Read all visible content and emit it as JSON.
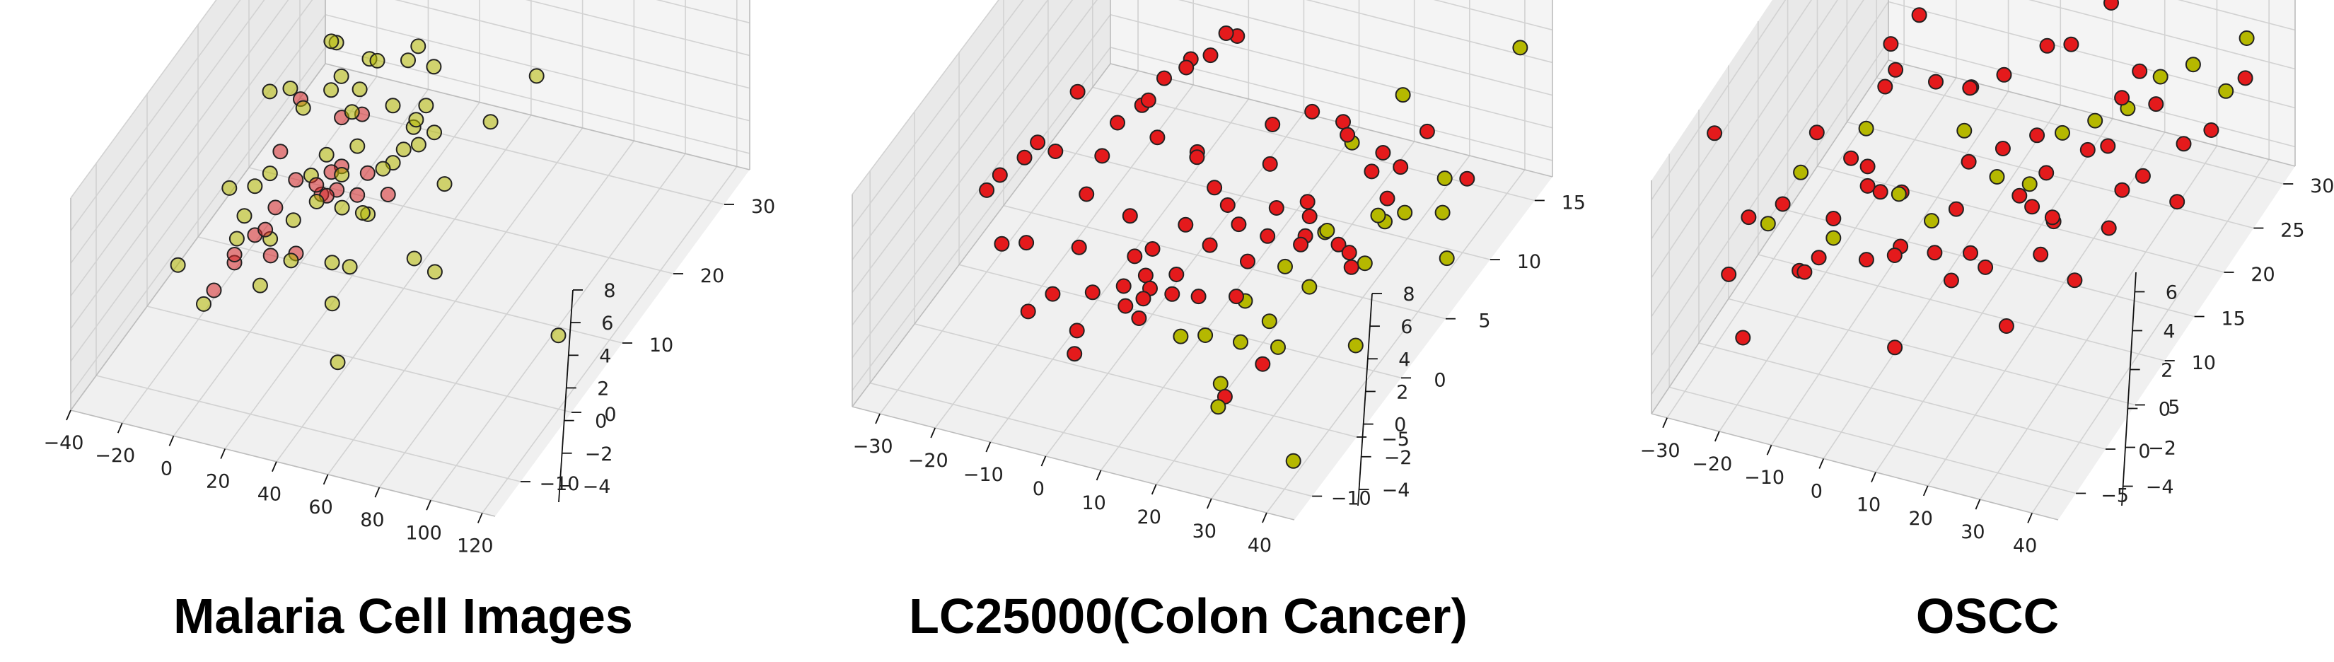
{
  "chart_data": [
    {
      "type": "scatter",
      "projection": "3d",
      "title": "Malaria Cell Images",
      "x_ticks": [
        "−40",
        "−20",
        "0",
        "20",
        "40",
        "60",
        "80",
        "100",
        "120"
      ],
      "y_ticks": [
        "−10",
        "0",
        "10",
        "20",
        "30"
      ],
      "z_ticks": [
        "−4",
        "−2",
        "0",
        "2",
        "4",
        "6",
        "8"
      ],
      "xlim": [
        -40,
        125
      ],
      "ylim": [
        -15,
        35
      ],
      "zlim": [
        -5,
        8
      ],
      "grid": true,
      "legend": "none",
      "series": [
        {
          "color": "#d62728",
          "marker": "circle",
          "x": [
            -14,
            -10,
            -6,
            -2,
            2,
            6,
            10,
            14,
            -12,
            -4,
            4,
            12,
            -8,
            0,
            8,
            16,
            -6,
            6,
            20,
            24,
            2,
            -2
          ],
          "y": [
            0,
            2,
            4,
            6,
            8,
            10,
            12,
            14,
            16,
            18,
            20,
            -2,
            1,
            3,
            5,
            7,
            9,
            11,
            13,
            15,
            17,
            19
          ],
          "z": [
            -3,
            -2,
            -1,
            0,
            1,
            0,
            -1,
            -2,
            2,
            -3,
            0,
            1,
            -1,
            0,
            -2,
            1,
            2,
            -1,
            0,
            -2,
            1,
            -3
          ]
        },
        {
          "color": "#b5b800",
          "marker": "circle",
          "x": [
            -18,
            -15,
            -12,
            -9,
            -6,
            -3,
            0,
            3,
            6,
            9,
            12,
            15,
            18,
            21,
            24,
            27,
            -16,
            -10,
            -4,
            2,
            8,
            14,
            20,
            26,
            30,
            34,
            40,
            48,
            56,
            62,
            -22,
            -28,
            -14,
            -8,
            0,
            6,
            12,
            18,
            22,
            28,
            36,
            44,
            52,
            -20,
            -12,
            -6,
            4,
            10,
            16,
            24,
            32,
            110
          ],
          "y": [
            0,
            5,
            10,
            15,
            20,
            25,
            2,
            7,
            12,
            17,
            22,
            27,
            4,
            9,
            14,
            19,
            24,
            1,
            6,
            11,
            16,
            21,
            26,
            3,
            8,
            13,
            18,
            23,
            28,
            5,
            10,
            0,
            15,
            20,
            25,
            30,
            2,
            12,
            22,
            8,
            18,
            -5,
            6,
            14,
            24,
            4,
            16,
            26,
            10,
            20,
            0,
            5
          ],
          "z": [
            -4,
            -2,
            0,
            2,
            4,
            1,
            -3,
            -1,
            1,
            3,
            0,
            -2,
            2,
            -4,
            0,
            1,
            -1,
            3,
            -2,
            0,
            2,
            -3,
            1,
            -1,
            0,
            2,
            -2,
            0,
            1,
            -1,
            -3,
            -2,
            3,
            4,
            1,
            0,
            -1,
            2,
            -2,
            0,
            1,
            -3,
            -1,
            3,
            0,
            2,
            -2,
            1,
            -1,
            0,
            -2,
            -3
          ]
        }
      ]
    },
    {
      "type": "scatter",
      "projection": "3d",
      "title": "LC25000(Colon Cancer)",
      "x_ticks": [
        "−30",
        "−20",
        "−10",
        "0",
        "10",
        "20",
        "30",
        "40"
      ],
      "y_ticks": [
        "−10",
        "−5",
        "0",
        "5",
        "10",
        "15"
      ],
      "z_ticks": [
        "−4",
        "−2",
        "0",
        "2",
        "4",
        "6",
        "8"
      ],
      "xlim": [
        -35,
        45
      ],
      "ylim": [
        -12,
        17
      ],
      "zlim": [
        -5,
        8
      ],
      "grid": true,
      "legend": "none",
      "series": [
        {
          "color": "#e41a1c",
          "marker": "circle",
          "x": [
            -30,
            -24,
            -20,
            -16,
            -12,
            -8,
            -4,
            0,
            4,
            8,
            12,
            16,
            20,
            24,
            28,
            32,
            36,
            -26,
            -18,
            -10,
            -2,
            6,
            14,
            22,
            30,
            -22,
            -14,
            -6,
            2,
            10,
            18,
            26,
            34,
            -28,
            -20,
            -12,
            -4,
            4,
            12,
            20,
            28,
            -16,
            -8,
            0,
            8,
            16,
            24,
            32,
            -10,
            -2,
            6,
            14,
            22,
            0,
            10,
            20,
            -6,
            4,
            14,
            24,
            -14,
            8,
            18,
            28,
            -24,
            -4,
            16,
            36,
            -18,
            2
          ],
          "y": [
            0,
            2,
            4,
            6,
            8,
            10,
            12,
            -2,
            -4,
            -6,
            1,
            3,
            5,
            7,
            9,
            11,
            13,
            -1,
            -3,
            -5,
            -7,
            0,
            2,
            4,
            6,
            8,
            10,
            12,
            -2,
            -4,
            -6,
            -8,
            1,
            3,
            5,
            7,
            9,
            11,
            -1,
            -3,
            -5,
            -7,
            -9,
            0,
            2,
            4,
            6,
            8,
            10,
            -2,
            -4,
            -6,
            3,
            5,
            7,
            9,
            -3,
            -5,
            1,
            11,
            13,
            -8,
            6,
            2,
            4,
            -6,
            8,
            0,
            10,
            -10
          ],
          "z": [
            0,
            2,
            4,
            1,
            -1,
            -3,
            3,
            0,
            -2,
            1,
            2,
            -1,
            0,
            3,
            -2,
            1,
            -3,
            2,
            0,
            -1,
            4,
            1,
            -2,
            0,
            2,
            -3,
            1,
            3,
            -1,
            0,
            2,
            -2,
            1,
            0,
            -3,
            2,
            4,
            -1,
            1,
            0,
            -2,
            3,
            1,
            -1,
            2,
            0,
            -3,
            1,
            2,
            -2,
            0,
            3,
            -1,
            1,
            0,
            2,
            -2,
            5,
            1,
            -1,
            0,
            2,
            -3,
            1,
            0,
            -2,
            3,
            1,
            -1,
            0
          ]
        },
        {
          "color": "#b5b800",
          "marker": "circle",
          "x": [
            16,
            20,
            24,
            28,
            32,
            36,
            40,
            22,
            26,
            30,
            34,
            38,
            18,
            24,
            30,
            36,
            42,
            28,
            34,
            40,
            20,
            26,
            44,
            40
          ],
          "y": [
            -4,
            -2,
            0,
            2,
            4,
            6,
            8,
            -6,
            -3,
            1,
            5,
            9,
            -8,
            -5,
            -1,
            3,
            7,
            -10,
            -7,
            -2,
            10,
            12,
            14,
            -9
          ],
          "z": [
            -2,
            -1,
            0,
            1,
            -2,
            0,
            1,
            -3,
            -1,
            2,
            0,
            -2,
            1,
            -1,
            0,
            2,
            -3,
            -1,
            1,
            -2,
            0,
            2,
            5,
            -4
          ]
        }
      ]
    },
    {
      "type": "scatter",
      "projection": "3d",
      "title": "OSCC",
      "x_ticks": [
        "−30",
        "−20",
        "−10",
        "0",
        "10",
        "20",
        "30",
        "40"
      ],
      "y_ticks": [
        "−5",
        "0",
        "5",
        "10",
        "15",
        "20",
        "25",
        "30"
      ],
      "z_ticks": [
        "−4",
        "−2",
        "0",
        "2",
        "4",
        "6"
      ],
      "xlim": [
        -33,
        45
      ],
      "ylim": [
        -8,
        32
      ],
      "zlim": [
        -5,
        7
      ],
      "grid": true,
      "legend": "none",
      "series": [
        {
          "color": "#e41a1c",
          "marker": "circle",
          "x": [
            -30,
            -28,
            -26,
            -24,
            -22,
            -20,
            -18,
            -16,
            -14,
            -12,
            -10,
            -8,
            -6,
            -4,
            -2,
            0,
            2,
            4,
            6,
            8,
            10,
            12,
            14,
            16,
            18,
            20,
            22,
            24,
            26,
            28,
            30,
            32,
            34,
            36,
            38,
            40,
            -25,
            -15,
            -5,
            5,
            15,
            25,
            35,
            -20,
            -10,
            0,
            10,
            20,
            30,
            -18,
            -8,
            2,
            12,
            22,
            -28,
            -12,
            8,
            28
          ],
          "y": [
            0,
            4,
            8,
            12,
            16,
            20,
            24,
            2,
            6,
            10,
            14,
            18,
            22,
            26,
            1,
            5,
            9,
            13,
            17,
            21,
            25,
            3,
            7,
            11,
            15,
            19,
            23,
            27,
            0,
            4,
            8,
            12,
            16,
            20,
            24,
            28,
            -2,
            2,
            6,
            10,
            14,
            18,
            22,
            -4,
            0,
            4,
            8,
            12,
            16,
            20,
            24,
            28,
            30,
            26,
            28,
            10,
            -3,
            6
          ],
          "z": [
            6,
            0,
            -1,
            1,
            -2,
            0,
            2,
            -1,
            0,
            1,
            -2,
            2,
            0,
            -1,
            1,
            0,
            -2,
            1,
            0,
            -1,
            2,
            0,
            -1,
            1,
            -2,
            0,
            1,
            -1,
            0,
            2,
            -1,
            0,
            1,
            -2,
            0,
            1,
            0,
            -1,
            2,
            0,
            -1,
            1,
            0,
            -2,
            1,
            0,
            -1,
            2,
            0,
            1,
            -1,
            0,
            2,
            1,
            -2,
            0,
            -1,
            3
          ]
        },
        {
          "color": "#b5b800",
          "marker": "circle",
          "x": [
            -22,
            -14,
            -6,
            2,
            10,
            18,
            26,
            34,
            -18,
            -2,
            14,
            30,
            -10,
            6,
            22,
            38
          ],
          "y": [
            2,
            6,
            10,
            14,
            18,
            22,
            26,
            30,
            4,
            12,
            20,
            28,
            8,
            16,
            24,
            30
          ],
          "z": [
            1,
            -1,
            0,
            2,
            -2,
            0,
            1,
            -1,
            3,
            -2,
            0,
            1,
            4,
            -1,
            0,
            2
          ]
        }
      ]
    }
  ]
}
